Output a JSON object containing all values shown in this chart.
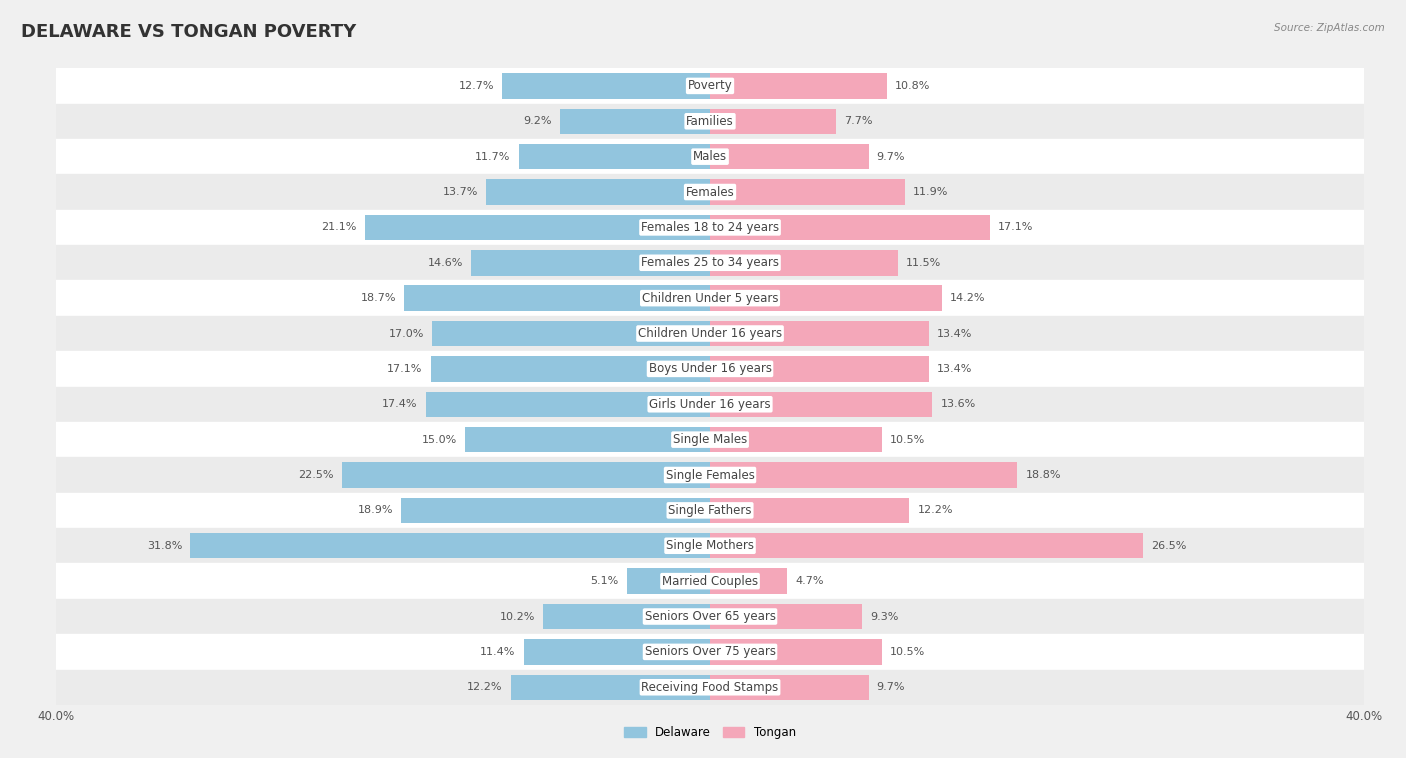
{
  "title": "DELAWARE VS TONGAN POVERTY",
  "source": "Source: ZipAtlas.com",
  "categories": [
    "Poverty",
    "Families",
    "Males",
    "Females",
    "Females 18 to 24 years",
    "Females 25 to 34 years",
    "Children Under 5 years",
    "Children Under 16 years",
    "Boys Under 16 years",
    "Girls Under 16 years",
    "Single Males",
    "Single Females",
    "Single Fathers",
    "Single Mothers",
    "Married Couples",
    "Seniors Over 65 years",
    "Seniors Over 75 years",
    "Receiving Food Stamps"
  ],
  "delaware": [
    12.7,
    9.2,
    11.7,
    13.7,
    21.1,
    14.6,
    18.7,
    17.0,
    17.1,
    17.4,
    15.0,
    22.5,
    18.9,
    31.8,
    5.1,
    10.2,
    11.4,
    12.2
  ],
  "tongan": [
    10.8,
    7.7,
    9.7,
    11.9,
    17.1,
    11.5,
    14.2,
    13.4,
    13.4,
    13.6,
    10.5,
    18.8,
    12.2,
    26.5,
    4.7,
    9.3,
    10.5,
    9.7
  ],
  "delaware_color": "#92c5de",
  "tongan_color": "#f4a7b9",
  "row_light": "#ffffff",
  "row_dark": "#ebebeb",
  "axis_limit": 40.0,
  "bar_height": 0.72,
  "title_fontsize": 13,
  "label_fontsize": 8.5,
  "value_fontsize": 8.0,
  "tick_fontsize": 8.5
}
